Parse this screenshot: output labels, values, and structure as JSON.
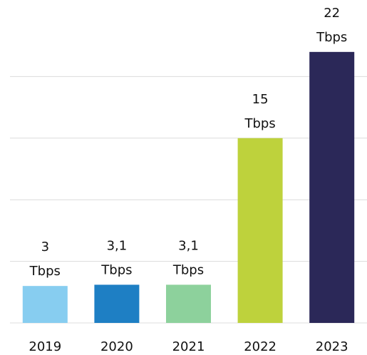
{
  "chart_data": {
    "type": "bar",
    "categories": [
      "2019",
      "2020",
      "2021",
      "2022",
      "2023"
    ],
    "values": [
      3,
      3.1,
      3.1,
      15,
      22
    ],
    "value_labels": [
      "3 Tbps",
      "3,1 Tbps",
      "3,1 Tbps",
      "15 Tbps",
      "22 Tbps"
    ],
    "colors": [
      "#87cdf0",
      "#1e7fc4",
      "#8dd19c",
      "#bed23c",
      "#2b2858"
    ],
    "ylim": [
      0,
      25
    ],
    "yticks": [
      0,
      5,
      10,
      15,
      20
    ],
    "grid": true
  }
}
